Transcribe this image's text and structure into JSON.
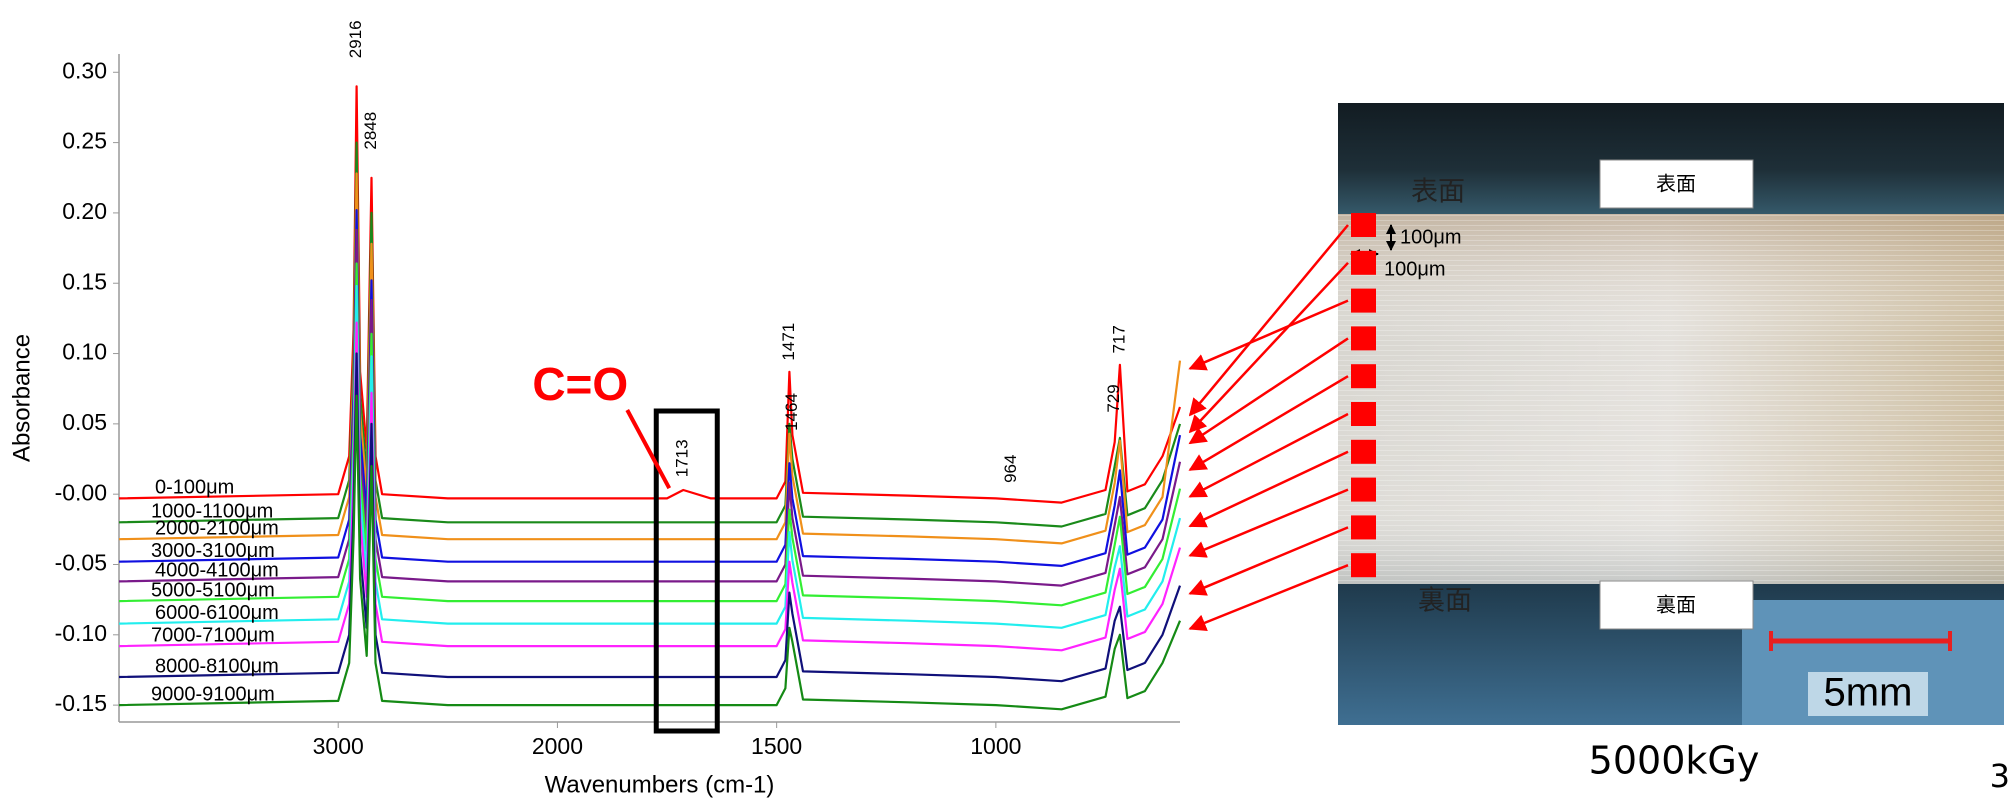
{
  "chart_data": {
    "type": "line",
    "y_label": "Absorbance",
    "x_label": "Wavenumbers (cm-1)",
    "xlim": [
      4000,
      580
    ],
    "x_break": 2000,
    "x_segment_weights": [
      1,
      2
    ],
    "xticks": [
      3000,
      2000,
      1500,
      1000
    ],
    "ylim": [
      -0.162,
      0.313
    ],
    "yticks": [
      {
        "value": 0.3,
        "label": "0.30"
      },
      {
        "value": 0.25,
        "label": "0.25"
      },
      {
        "value": 0.2,
        "label": "0.20"
      },
      {
        "value": 0.15,
        "label": "0.15"
      },
      {
        "value": 0.1,
        "label": "0.10"
      },
      {
        "value": 0.05,
        "label": "0.05"
      },
      {
        "value": 0,
        "label": "-0.00"
      },
      {
        "value": -0.05,
        "label": "-0.05"
      },
      {
        "value": -0.1,
        "label": "-0.10"
      },
      {
        "value": -0.15,
        "label": "-0.15"
      }
    ],
    "x": [
      4000,
      3000,
      2950,
      2930,
      2916,
      2900,
      2870,
      2848,
      2830,
      2800,
      2500,
      2000,
      1750,
      1713,
      1650,
      1500,
      1480,
      1471,
      1464,
      1440,
      1200,
      1000,
      850,
      750,
      729,
      717,
      700,
      660,
      620,
      580
    ],
    "series": [
      {
        "name": "0-100μm",
        "color": "#ff0000",
        "values": [
          -0.003,
          0,
          0.027,
          0.117,
          0.29,
          0.087,
          0.032,
          0.225,
          0.027,
          0,
          -0.003,
          -0.003,
          -0.003,
          0.003,
          -0.003,
          -0.003,
          0.009,
          0.087,
          0.042,
          0.001,
          -0.001,
          -0.003,
          -0.006,
          0.003,
          0.037,
          0.092,
          0.002,
          0.007,
          0.027,
          0.062
        ]
      },
      {
        "name": "1000-1100μm",
        "color": "#1a8a1a",
        "values": [
          -0.02,
          -0.017,
          0.01,
          0.1,
          0.25,
          0.07,
          0.015,
          0.2,
          0.01,
          -0.017,
          -0.02,
          -0.02,
          -0.02,
          -0.02,
          -0.02,
          -0.02,
          -0.008,
          0.05,
          0.025,
          -0.016,
          -0.018,
          -0.02,
          -0.023,
          -0.014,
          0.02,
          0.04,
          -0.015,
          -0.01,
          0.01,
          0.05
        ]
      },
      {
        "name": "2000-2100μm",
        "color": "#f0901a",
        "values": [
          -0.032,
          -0.029,
          -0.002,
          0.088,
          0.228,
          0.058,
          0.003,
          0.178,
          -0.002,
          -0.029,
          -0.032,
          -0.032,
          -0.032,
          -0.032,
          -0.032,
          -0.032,
          -0.02,
          0.043,
          0.013,
          -0.028,
          -0.03,
          -0.032,
          -0.035,
          -0.026,
          0.008,
          0.038,
          -0.027,
          -0.022,
          -0.002,
          0.095
        ]
      },
      {
        "name": "3000-3100μm",
        "color": "#1010e0",
        "values": [
          -0.048,
          -0.045,
          -0.018,
          0.072,
          0.202,
          0.042,
          -0.013,
          0.152,
          -0.018,
          -0.045,
          -0.048,
          -0.048,
          -0.048,
          -0.048,
          -0.048,
          -0.048,
          -0.036,
          0.022,
          -0.003,
          -0.044,
          -0.046,
          -0.048,
          -0.051,
          -0.042,
          -0.008,
          0.017,
          -0.043,
          -0.038,
          -0.018,
          0.042
        ]
      },
      {
        "name": "4000-4100μm",
        "color": "#7a1a8a",
        "values": [
          -0.062,
          -0.059,
          -0.032,
          0.058,
          0.188,
          0.028,
          -0.027,
          0.138,
          -0.032,
          -0.059,
          -0.062,
          -0.062,
          -0.062,
          -0.062,
          -0.062,
          -0.062,
          -0.05,
          0.008,
          -0.017,
          -0.058,
          -0.06,
          -0.062,
          -0.065,
          -0.056,
          -0.022,
          -0.002,
          -0.057,
          -0.052,
          -0.032,
          0.023
        ]
      },
      {
        "name": "5000-5100μm",
        "color": "#33ee33",
        "values": [
          -0.076,
          -0.073,
          -0.046,
          0.044,
          0.164,
          0.014,
          -0.041,
          0.114,
          -0.046,
          -0.073,
          -0.076,
          -0.076,
          -0.076,
          -0.076,
          -0.076,
          -0.076,
          -0.064,
          -0.011,
          -0.031,
          -0.072,
          -0.074,
          -0.076,
          -0.079,
          -0.07,
          -0.036,
          -0.016,
          -0.071,
          -0.066,
          -0.046,
          0.004
        ]
      },
      {
        "name": "6000-6100μm",
        "color": "#22eeee",
        "values": [
          -0.092,
          -0.089,
          -0.062,
          0.028,
          0.148,
          -0.002,
          -0.057,
          0.098,
          -0.062,
          -0.089,
          -0.092,
          -0.092,
          -0.092,
          -0.092,
          -0.092,
          -0.092,
          -0.08,
          -0.027,
          -0.047,
          -0.088,
          -0.09,
          -0.092,
          -0.095,
          -0.086,
          -0.052,
          -0.037,
          -0.087,
          -0.082,
          -0.062,
          -0.017
        ]
      },
      {
        "name": "7000-7100μm",
        "color": "#ff22ff",
        "values": [
          -0.108,
          -0.105,
          -0.078,
          0.012,
          0.122,
          -0.018,
          -0.073,
          0.072,
          -0.078,
          -0.105,
          -0.108,
          -0.108,
          -0.108,
          -0.108,
          -0.108,
          -0.108,
          -0.096,
          -0.048,
          -0.063,
          -0.104,
          -0.106,
          -0.108,
          -0.111,
          -0.102,
          -0.068,
          -0.053,
          -0.103,
          -0.098,
          -0.078,
          -0.038
        ]
      },
      {
        "name": "8000-8100μm",
        "color": "#10107a",
        "values": [
          -0.13,
          -0.127,
          -0.1,
          -0.01,
          0.1,
          -0.04,
          -0.095,
          0.05,
          -0.1,
          -0.127,
          -0.13,
          -0.13,
          -0.13,
          -0.13,
          -0.13,
          -0.13,
          -0.118,
          -0.07,
          -0.085,
          -0.126,
          -0.128,
          -0.13,
          -0.133,
          -0.124,
          -0.09,
          -0.08,
          -0.125,
          -0.12,
          -0.1,
          -0.065
        ]
      },
      {
        "name": "9000-9100μm",
        "color": "#158a15",
        "values": [
          -0.15,
          -0.147,
          -0.12,
          -0.03,
          0.07,
          -0.06,
          -0.115,
          0.02,
          -0.12,
          -0.147,
          -0.15,
          -0.15,
          -0.15,
          -0.15,
          -0.15,
          -0.15,
          -0.138,
          -0.095,
          -0.105,
          -0.146,
          -0.148,
          -0.15,
          -0.153,
          -0.144,
          -0.11,
          -0.1,
          -0.145,
          -0.14,
          -0.12,
          -0.09
        ]
      }
    ],
    "annotations": [
      {
        "x": 2916,
        "y": 0.31
      },
      {
        "x": 2848,
        "y": 0.245
      },
      {
        "x": 1713,
        "y": 0.012
      },
      {
        "x": 1471,
        "y": 0.095
      },
      {
        "x": 1464,
        "y": 0.045
      },
      {
        "x": 964,
        "y": 0.008
      },
      {
        "x": 729,
        "y": 0.058
      },
      {
        "x": 717,
        "y": 0.1
      }
    ],
    "callout": {
      "text": "C=O",
      "target": 1713,
      "color": "#ff0000"
    }
  },
  "photo": {
    "top_box": "表面",
    "bottom_box": "裏面",
    "top_side": "表面",
    "bottom_side": "裏面",
    "size_vertical": "100μm",
    "size_horizontal": "100μm",
    "scale_bar": "5mm"
  },
  "caption": "5000kGy",
  "page_number": "3"
}
